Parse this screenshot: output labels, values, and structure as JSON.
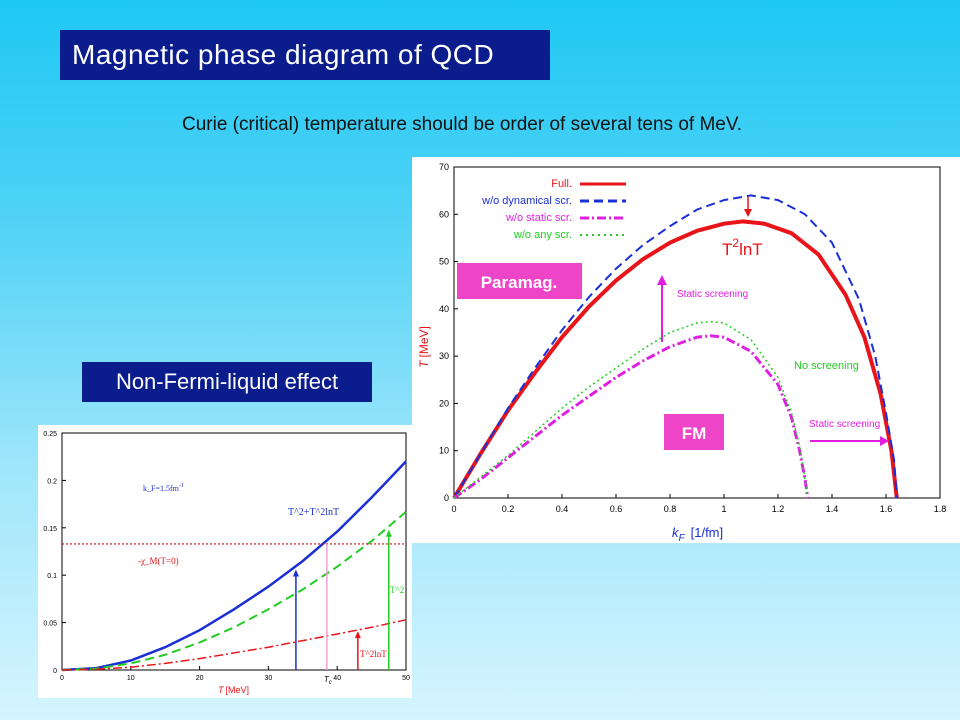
{
  "slide": {
    "title": "Magnetic phase diagram of QCD",
    "subtitle": "Curie (critical) temperature should be order of  several tens of MeV.",
    "nfl_label": "Non-Fermi-liquid effect"
  },
  "chart_data": [
    {
      "type": "line",
      "ylabel_T": "T",
      "ylabel_unit": "[MeV]",
      "xlabel_k": "k",
      "xlabel_sub": "F",
      "xlabel_unit": "[1/fm]",
      "xlim": [
        0,
        1.8
      ],
      "ylim": [
        0,
        70
      ],
      "xticks": [
        "0",
        "0.2",
        "0.4",
        "0.6",
        "0.8",
        "1",
        "1.2",
        "1.4",
        "1.6",
        "1.8"
      ],
      "yticks": [
        "0",
        "10",
        "20",
        "30",
        "40",
        "50",
        "60",
        "70"
      ],
      "legend": [
        "Full.",
        "w/o dynamical scr.",
        "w/o static scr.",
        "w/o any scr."
      ],
      "series": [
        {
          "name": "Full.",
          "color": "#e8141a",
          "style": "solid",
          "x": [
            0,
            0.1,
            0.2,
            0.3,
            0.4,
            0.5,
            0.6,
            0.7,
            0.8,
            0.9,
            1.0,
            1.07,
            1.15,
            1.25,
            1.35,
            1.45,
            1.52,
            1.58,
            1.62,
            1.64
          ],
          "y": [
            0,
            9.5,
            18.5,
            26.5,
            34,
            40.5,
            46,
            50.5,
            54,
            56.5,
            58,
            58.5,
            58,
            56,
            51.5,
            43,
            34,
            22,
            10,
            0
          ]
        },
        {
          "name": "w/o dynamical scr.",
          "color": "#1a2fd6",
          "style": "dashed",
          "x": [
            0,
            0.1,
            0.2,
            0.3,
            0.4,
            0.5,
            0.6,
            0.7,
            0.8,
            0.9,
            1.0,
            1.1,
            1.2,
            1.3,
            1.4,
            1.5,
            1.56,
            1.6,
            1.63,
            1.64
          ],
          "y": [
            0,
            9.5,
            19,
            27.5,
            35.5,
            42.5,
            48.5,
            53.5,
            57.5,
            61,
            63,
            64,
            63,
            60,
            54,
            42,
            30,
            18,
            8,
            0
          ]
        },
        {
          "name": "w/o static scr.",
          "color": "#e020e0",
          "style": "dashdot",
          "x": [
            0,
            0.1,
            0.2,
            0.3,
            0.4,
            0.5,
            0.6,
            0.7,
            0.8,
            0.9,
            0.95,
            1.0,
            1.1,
            1.2,
            1.25,
            1.28,
            1.3,
            1.31
          ],
          "y": [
            0,
            4,
            8.5,
            13,
            17.5,
            21.5,
            25.5,
            29,
            32,
            34,
            34.3,
            34,
            31,
            24,
            17,
            10,
            4,
            0
          ]
        },
        {
          "name": "w/o any scr.",
          "color": "#22cc22",
          "style": "dotted",
          "x": [
            0,
            0.1,
            0.2,
            0.3,
            0.4,
            0.5,
            0.6,
            0.7,
            0.8,
            0.9,
            0.95,
            1.0,
            1.1,
            1.2,
            1.25,
            1.28,
            1.3,
            1.31
          ],
          "y": [
            0,
            4.5,
            9,
            14,
            19,
            23.5,
            27.5,
            31.5,
            35,
            37,
            37.3,
            37,
            33.5,
            25.5,
            18,
            11,
            4,
            0
          ]
        }
      ],
      "annotations": {
        "t2lnt_base": "T",
        "t2lnt_sup": "2",
        "t2lnt_rest": "lnT",
        "static_screening_1": "Static screening",
        "no_screening": "No screening",
        "static_screening_2": "Static screening",
        "paramag": "Paramag.",
        "fm": "FM"
      }
    },
    {
      "type": "line",
      "xlabel_T": "T",
      "xlabel_unit": "[MeV]",
      "xlim": [
        0,
        50
      ],
      "ylim": [
        0,
        0.25
      ],
      "xticks": [
        "0",
        "10",
        "20",
        "30",
        "40",
        "50"
      ],
      "yticks": [
        "0",
        "0.05",
        "0.1",
        "0.15",
        "0.2",
        "0.25"
      ],
      "tc_label_base": "T",
      "tc_label_sub": "c",
      "kf_label": "k_F=1.5fm",
      "kf_sup": "-1",
      "chi_label": "-χ_M(T=0)",
      "hline_value": 0.133,
      "tc_value": 38.5,
      "curve_labels": {
        "sum": "T^2+T^2lnT",
        "t2": "T^2",
        "t2lnt": "T^2lnT"
      },
      "series": [
        {
          "name": "T^2+T^2lnT",
          "color": "#1a2fd6",
          "style": "solid",
          "x": [
            0,
            5,
            10,
            15,
            20,
            25,
            30,
            35,
            40,
            45,
            50
          ],
          "y": [
            0,
            0.002,
            0.01,
            0.024,
            0.042,
            0.064,
            0.088,
            0.115,
            0.146,
            0.182,
            0.22
          ]
        },
        {
          "name": "T^2",
          "color": "#22cc22",
          "style": "dashed",
          "x": [
            0,
            5,
            10,
            15,
            20,
            25,
            30,
            35,
            40,
            45,
            50
          ],
          "y": [
            0,
            0.0015,
            0.007,
            0.016,
            0.029,
            0.045,
            0.064,
            0.085,
            0.109,
            0.136,
            0.167
          ]
        },
        {
          "name": "T^2lnT",
          "color": "#e8141a",
          "style": "dashdot",
          "x": [
            0,
            5,
            10,
            15,
            20,
            25,
            30,
            35,
            40,
            45,
            50
          ],
          "y": [
            0,
            0.0008,
            0.003,
            0.007,
            0.012,
            0.018,
            0.024,
            0.031,
            0.038,
            0.045,
            0.053
          ]
        }
      ]
    }
  ]
}
